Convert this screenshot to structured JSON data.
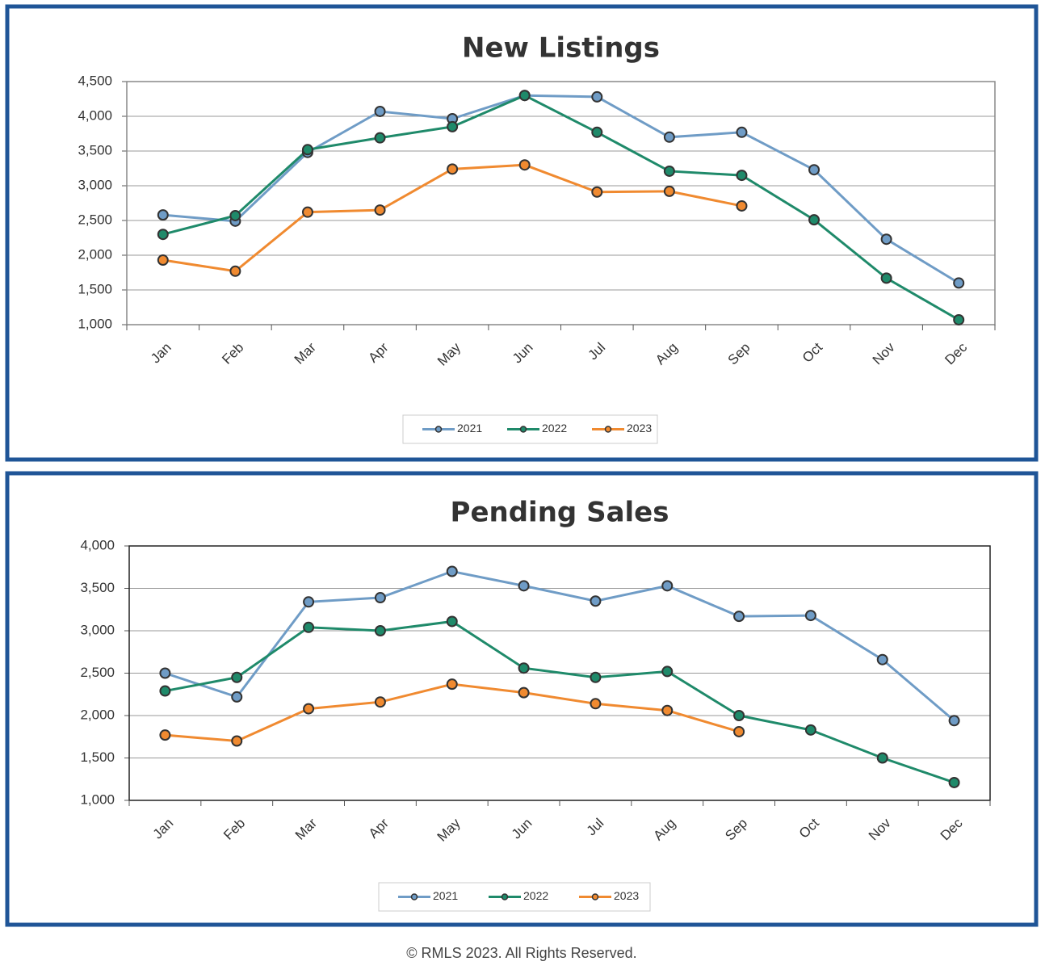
{
  "chart_data": [
    {
      "type": "line",
      "title": "New Listings",
      "categories": [
        "Jan",
        "Feb",
        "Mar",
        "Apr",
        "May",
        "Jun",
        "Jul",
        "Aug",
        "Sep",
        "Oct",
        "Nov",
        "Dec"
      ],
      "series": [
        {
          "name": "2021",
          "color": "#6f9cc6",
          "values": [
            2580,
            2490,
            3480,
            4070,
            3965,
            4300,
            4280,
            3700,
            3770,
            3230,
            2230,
            1600
          ]
        },
        {
          "name": "2022",
          "color": "#1f8a6a",
          "values": [
            2300,
            2570,
            3520,
            3690,
            3850,
            4300,
            3770,
            3210,
            3150,
            2510,
            1670,
            1070
          ]
        },
        {
          "name": "2023",
          "color": "#f08a30",
          "values": [
            1930,
            1770,
            2620,
            2650,
            3240,
            3300,
            2910,
            2920,
            2710,
            null,
            null,
            null
          ]
        }
      ],
      "ylim": [
        1000,
        4500
      ],
      "yticks": [
        {
          "value": 1000,
          "label": "1,000"
        },
        {
          "value": 1500,
          "label": "1,500"
        },
        {
          "value": 2000,
          "label": "2,000"
        },
        {
          "value": 2500,
          "label": "2,500"
        },
        {
          "value": 3000,
          "label": "3,000"
        },
        {
          "value": 3500,
          "label": "3,500"
        },
        {
          "value": 4000,
          "label": "4,000"
        },
        {
          "value": 4500,
          "label": "4,500"
        }
      ],
      "grid": true,
      "legend": "bottom"
    },
    {
      "type": "line",
      "title": "Pending Sales",
      "categories": [
        "Jan",
        "Feb",
        "Mar",
        "Apr",
        "May",
        "Jun",
        "Jul",
        "Aug",
        "Sep",
        "Oct",
        "Nov",
        "Dec"
      ],
      "series": [
        {
          "name": "2021",
          "color": "#6f9cc6",
          "values": [
            2500,
            2220,
            3340,
            3390,
            3700,
            3530,
            3350,
            3530,
            3170,
            3180,
            2660,
            1940
          ]
        },
        {
          "name": "2022",
          "color": "#1f8a6a",
          "values": [
            2290,
            2450,
            3040,
            3000,
            3110,
            2560,
            2450,
            2520,
            2000,
            1830,
            1500,
            1210
          ]
        },
        {
          "name": "2023",
          "color": "#f08a30",
          "values": [
            1770,
            1700,
            2080,
            2160,
            2370,
            2270,
            2140,
            2060,
            1810,
            null,
            null,
            null
          ]
        }
      ],
      "ylim": [
        1000,
        4000
      ],
      "yticks": [
        {
          "value": 1000,
          "label": "1,000"
        },
        {
          "value": 1500,
          "label": "1,500"
        },
        {
          "value": 2000,
          "label": "2,000"
        },
        {
          "value": 2500,
          "label": "2,500"
        },
        {
          "value": 3000,
          "label": "3,000"
        },
        {
          "value": 3500,
          "label": "3,500"
        },
        {
          "value": 4000,
          "label": "4,000"
        }
      ],
      "grid": true,
      "legend": "bottom"
    }
  ],
  "footer": "© RMLS 2023. All Rights Reserved."
}
